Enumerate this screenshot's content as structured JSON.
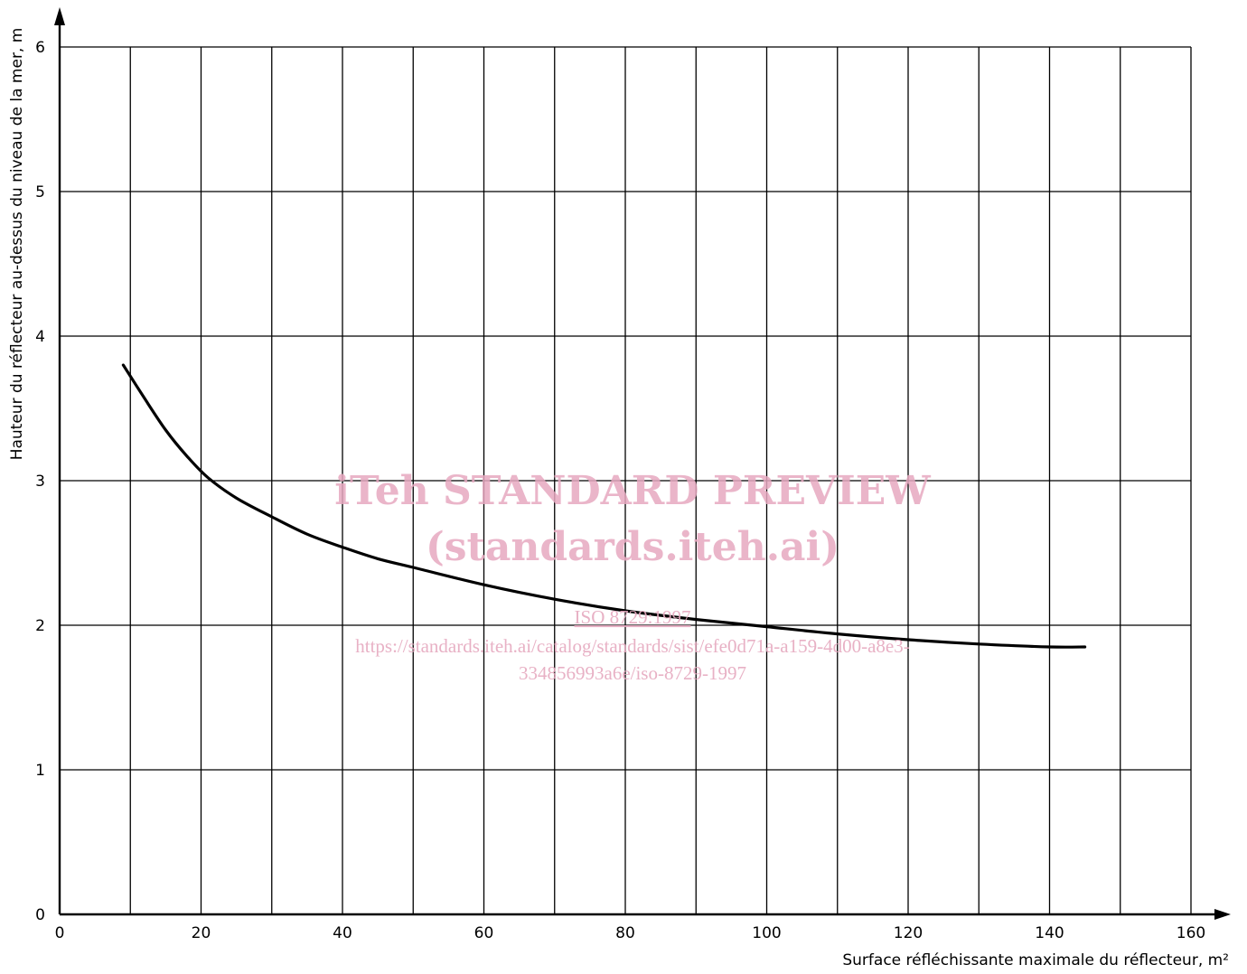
{
  "chart_data": {
    "type": "line",
    "title": "",
    "xlabel": "Surface réfléchissante maximale du réflecteur, m²",
    "ylabel": "Hauteur du réflecteur au-dessus du niveau de la mer, m",
    "xlim": [
      0,
      160
    ],
    "ylim": [
      0,
      6
    ],
    "x_ticks": [
      0,
      20,
      40,
      60,
      80,
      100,
      120,
      140,
      160
    ],
    "y_ticks": [
      0,
      1,
      2,
      3,
      4,
      5,
      6
    ],
    "x_tick_labels": [
      "0",
      "20",
      "40",
      "60",
      "80",
      "100",
      "120",
      "140",
      "160"
    ],
    "y_tick_labels": [
      "0",
      "1",
      "2",
      "3",
      "4",
      "5",
      "6"
    ],
    "grid": true,
    "grid_x_step": 10,
    "grid_y_step": 1,
    "series": [
      {
        "x": [
          9,
          12,
          15,
          18,
          21,
          25,
          30,
          35,
          40,
          45,
          50,
          60,
          70,
          80,
          90,
          100,
          110,
          120,
          130,
          140,
          145
        ],
        "y": [
          3.8,
          3.57,
          3.35,
          3.17,
          3.02,
          2.88,
          2.75,
          2.63,
          2.54,
          2.46,
          2.4,
          2.28,
          2.18,
          2.1,
          2.04,
          1.99,
          1.94,
          1.9,
          1.87,
          1.85,
          1.85
        ]
      }
    ]
  },
  "watermark": {
    "line1": "iTeh STANDARD PREVIEW",
    "line2": "(standards.iteh.ai)",
    "line3": "ISO 8729:1997",
    "line4": "https://standards.iteh.ai/catalog/standards/sist/efe0d71a-a159-4d00-a8e3-",
    "line5": "334856993a6e/iso-8729-1997",
    "color": "#e6a8bf"
  }
}
